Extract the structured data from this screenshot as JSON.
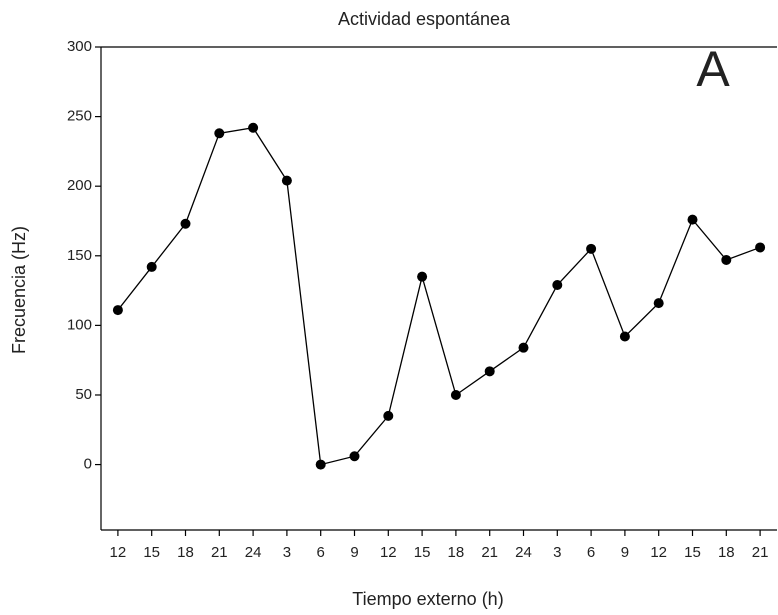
{
  "chart_data": {
    "type": "line",
    "title": "Actividad espontánea",
    "xlabel": "Tiempo externo (h)",
    "ylabel": "Frecuencia (Hz)",
    "annotation": "A",
    "categories": [
      "12",
      "15",
      "18",
      "21",
      "24",
      "3",
      "6",
      "9",
      "12",
      "15",
      "18",
      "21",
      "24",
      "3",
      "6",
      "9",
      "12",
      "15",
      "18",
      "21"
    ],
    "values": [
      111,
      142,
      173,
      238,
      242,
      204,
      0,
      6,
      35,
      135,
      50,
      67,
      84,
      129,
      155,
      92,
      116,
      176,
      147,
      156
    ],
    "color": "#000000",
    "ylim": [
      -47,
      300
    ],
    "yticks": [
      0,
      50,
      100,
      150,
      200,
      250,
      300
    ],
    "grid": false
  }
}
